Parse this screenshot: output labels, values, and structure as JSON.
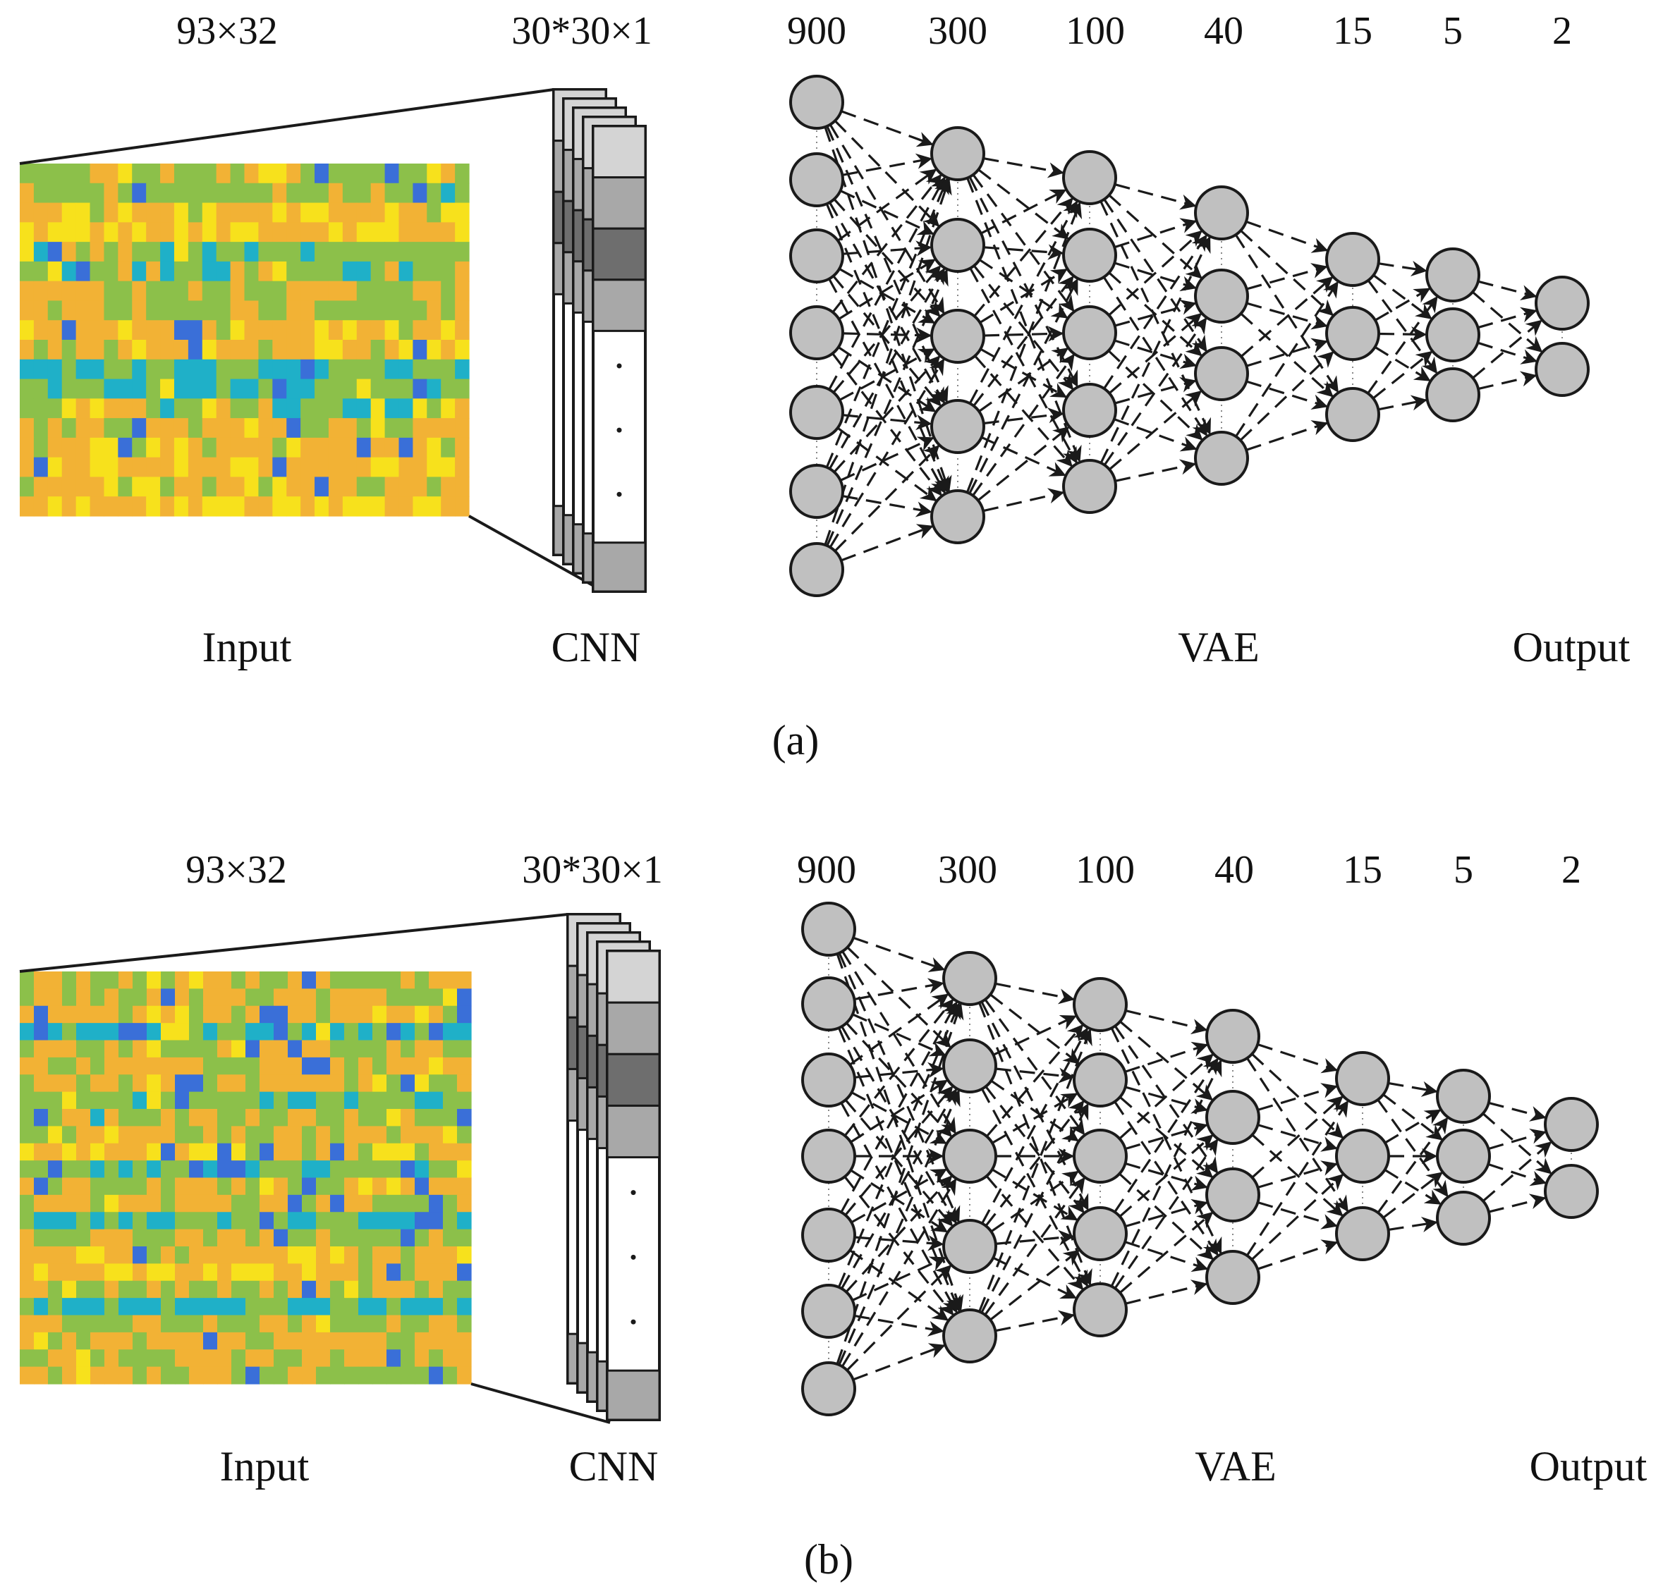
{
  "colors": {
    "background": "#ffffff",
    "node_fill": "#c0c0c0",
    "stroke": "#1a1a1a",
    "filter_light": "#d4d4d4",
    "filter_mid": "#a8a8a8",
    "filter_dark": "#6e6e6e",
    "heatmap_blue": "#3a6fd8",
    "heatmap_cyan": "#1fb0c8",
    "heatmap_green": "#8cc04a",
    "heatmap_orange": "#f2b235",
    "heatmap_yellow": "#f7e11c"
  },
  "panels": [
    {
      "id": "a",
      "caption": "(a)",
      "input_dims": "93×32",
      "cnn_dims": "30*30×1",
      "input_label": "Input",
      "cnn_label": "CNN",
      "vae_label": "VAE",
      "output_label": "Output",
      "layer_sizes": [
        "900",
        "300",
        "100",
        "40",
        "15",
        "5",
        "2"
      ],
      "drawn_nodes_per_layer": [
        7,
        5,
        5,
        4,
        3,
        3,
        2
      ]
    },
    {
      "id": "b",
      "caption": "(b)",
      "input_dims": "93×32",
      "cnn_dims": "30*30×1",
      "input_label": "Input",
      "cnn_label": "CNN",
      "vae_label": "VAE",
      "output_label": "Output",
      "layer_sizes": [
        "900",
        "300",
        "100",
        "40",
        "15",
        "5",
        "2"
      ],
      "drawn_nodes_per_layer": [
        7,
        5,
        5,
        4,
        3,
        3,
        2
      ]
    }
  ]
}
